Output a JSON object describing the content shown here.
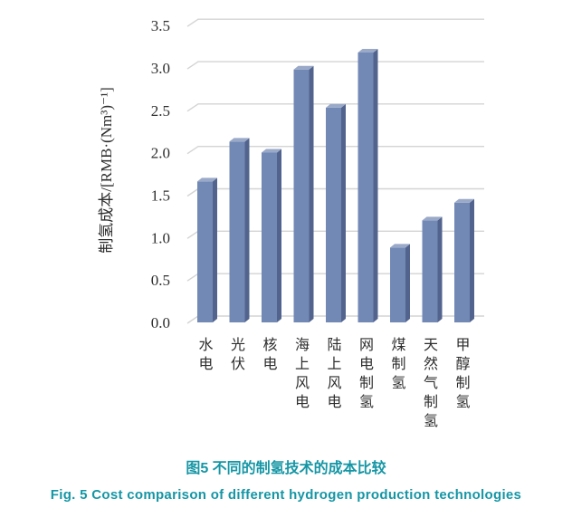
{
  "figure": {
    "caption_zh": "图5 不同的制氢技术的成本比较",
    "caption_en": "Fig. 5 Cost comparison of different hydrogen production technologies",
    "caption_color": "#1596A5"
  },
  "chart_data": {
    "type": "bar",
    "style": "3d-effect-bars",
    "title": "",
    "xlabel": "",
    "ylabel": "制氢成本/[RMB·(Nm³)⁻¹]",
    "categories": [
      "水电",
      "光伏",
      "核电",
      "海上风电",
      "陆上风电",
      "网电制氢",
      "煤制氢",
      "天然气制氢",
      "甲醇制氢"
    ],
    "values": [
      1.63,
      2.1,
      1.97,
      2.95,
      2.5,
      3.15,
      0.85,
      1.17,
      1.38
    ],
    "ylim": [
      0,
      3.5
    ],
    "ytick_step": 0.5,
    "yticks": [
      "0.0",
      "0.5",
      "1.0",
      "1.5",
      "2.0",
      "2.5",
      "3.0",
      "3.5"
    ],
    "grid": true,
    "legend": false,
    "colors": {
      "bar_front": "#7289B6",
      "bar_side": "#52648E",
      "bar_top": "#9AA9C8",
      "gridline": "#D4D4D4",
      "text": "#2E2E2E"
    }
  }
}
